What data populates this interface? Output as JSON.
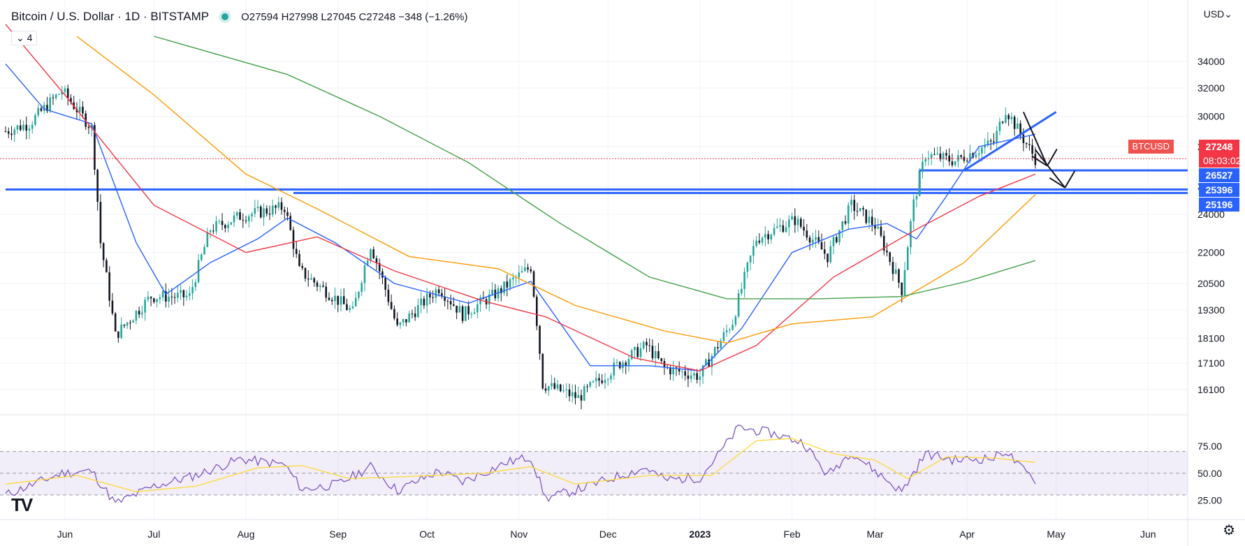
{
  "header": {
    "title": "Bitcoin / U.S. Dollar · 1D · BITSTAMP",
    "ohlc": "O27594 H27998 L27045 C27248 −348 (−1.26%)",
    "indicator_count": "4",
    "currency": "USD"
  },
  "price_tags": {
    "symbol": "BTCUSD",
    "last": "27248",
    "countdown": "08:03:02",
    "levels": [
      "26527",
      "25396",
      "25196"
    ]
  },
  "chart_data": [
    {
      "type": "candlestick",
      "xlabel": "",
      "ylabel": "",
      "x_ticks": [
        "Jun",
        "Jul",
        "Aug",
        "Sep",
        "Oct",
        "Nov",
        "Dec",
        "2023",
        "Feb",
        "Mar",
        "Apr",
        "May",
        "Jun"
      ],
      "y_ticks": [
        34000,
        32000,
        30000,
        28000,
        25600,
        24000,
        22000,
        20500,
        19300,
        18100,
        17100,
        16100
      ],
      "y_scale": "log",
      "ylim": [
        15300,
        36000
      ],
      "approx_close_path": [
        {
          "date": "2022-05-12",
          "v": 29000
        },
        {
          "date": "2022-05-20",
          "v": 29500
        },
        {
          "date": "2022-05-31",
          "v": 31800
        },
        {
          "date": "2022-06-10",
          "v": 29200
        },
        {
          "date": "2022-06-13",
          "v": 22500
        },
        {
          "date": "2022-06-18",
          "v": 18200
        },
        {
          "date": "2022-06-30",
          "v": 19900
        },
        {
          "date": "2022-07-13",
          "v": 19900
        },
        {
          "date": "2022-07-20",
          "v": 23200
        },
        {
          "date": "2022-07-30",
          "v": 23900
        },
        {
          "date": "2022-08-14",
          "v": 24400
        },
        {
          "date": "2022-08-19",
          "v": 21100
        },
        {
          "date": "2022-09-06",
          "v": 19200
        },
        {
          "date": "2022-09-12",
          "v": 22400
        },
        {
          "date": "2022-09-21",
          "v": 18500
        },
        {
          "date": "2022-10-05",
          "v": 20300
        },
        {
          "date": "2022-10-13",
          "v": 19100
        },
        {
          "date": "2022-10-25",
          "v": 20100
        },
        {
          "date": "2022-11-05",
          "v": 21300
        },
        {
          "date": "2022-11-09",
          "v": 16300
        },
        {
          "date": "2022-11-21",
          "v": 15800
        },
        {
          "date": "2022-12-05",
          "v": 17100
        },
        {
          "date": "2022-12-14",
          "v": 17800
        },
        {
          "date": "2022-12-20",
          "v": 16900
        },
        {
          "date": "2023-01-01",
          "v": 16600
        },
        {
          "date": "2023-01-12",
          "v": 18800
        },
        {
          "date": "2023-01-20",
          "v": 22700
        },
        {
          "date": "2023-02-02",
          "v": 23700
        },
        {
          "date": "2023-02-13",
          "v": 21800
        },
        {
          "date": "2023-02-21",
          "v": 24500
        },
        {
          "date": "2023-03-01",
          "v": 23400
        },
        {
          "date": "2023-03-10",
          "v": 20200
        },
        {
          "date": "2023-03-14",
          "v": 24600
        },
        {
          "date": "2023-03-18",
          "v": 27500
        },
        {
          "date": "2023-03-28",
          "v": 27100
        },
        {
          "date": "2023-04-10",
          "v": 28300
        },
        {
          "date": "2023-04-14",
          "v": 30500
        },
        {
          "date": "2023-04-19",
          "v": 28800
        },
        {
          "date": "2023-04-24",
          "v": 27248
        }
      ],
      "series": [
        {
          "color": "#2962ff",
          "points": [
            {
              "date": "2022-05-12",
              "v": 33800
            },
            {
              "date": "2022-05-25",
              "v": 30500
            },
            {
              "date": "2022-06-10",
              "v": 29500
            },
            {
              "date": "2022-06-25",
              "v": 22500
            },
            {
              "date": "2022-07-05",
              "v": 20000
            },
            {
              "date": "2022-07-20",
              "v": 21500
            },
            {
              "date": "2022-08-05",
              "v": 22700
            },
            {
              "date": "2022-08-15",
              "v": 23800
            },
            {
              "date": "2022-08-31",
              "v": 22500
            },
            {
              "date": "2022-09-20",
              "v": 20500
            },
            {
              "date": "2022-10-15",
              "v": 19600
            },
            {
              "date": "2022-11-05",
              "v": 20600
            },
            {
              "date": "2022-11-25",
              "v": 17000
            },
            {
              "date": "2022-12-15",
              "v": 17000
            },
            {
              "date": "2023-01-01",
              "v": 16800
            },
            {
              "date": "2023-01-15",
              "v": 18500
            },
            {
              "date": "2023-02-01",
              "v": 22000
            },
            {
              "date": "2023-02-20",
              "v": 23200
            },
            {
              "date": "2023-03-05",
              "v": 23500
            },
            {
              "date": "2023-03-15",
              "v": 22700
            },
            {
              "date": "2023-03-25",
              "v": 25000
            },
            {
              "date": "2023-04-05",
              "v": 28000
            },
            {
              "date": "2023-04-24",
              "v": 28800
            }
          ]
        },
        {
          "color": "#f23645",
          "points": [
            {
              "date": "2022-05-12",
              "v": 37000
            },
            {
              "date": "2022-06-01",
              "v": 31500
            },
            {
              "date": "2022-07-01",
              "v": 24500
            },
            {
              "date": "2022-08-01",
              "v": 22000
            },
            {
              "date": "2022-08-25",
              "v": 22800
            },
            {
              "date": "2022-09-20",
              "v": 21100
            },
            {
              "date": "2022-10-20",
              "v": 19700
            },
            {
              "date": "2022-11-10",
              "v": 19000
            },
            {
              "date": "2022-12-10",
              "v": 17300
            },
            {
              "date": "2023-01-01",
              "v": 16800
            },
            {
              "date": "2023-01-20",
              "v": 17800
            },
            {
              "date": "2023-02-15",
              "v": 20800
            },
            {
              "date": "2023-03-15",
              "v": 23200
            },
            {
              "date": "2023-04-05",
              "v": 25000
            },
            {
              "date": "2023-04-24",
              "v": 26300
            }
          ]
        },
        {
          "color": "#ff9800",
          "points": [
            {
              "date": "2022-06-05",
              "v": 36000
            },
            {
              "date": "2022-07-01",
              "v": 31500
            },
            {
              "date": "2022-08-01",
              "v": 26300
            },
            {
              "date": "2022-08-25",
              "v": 24300
            },
            {
              "date": "2022-09-25",
              "v": 21800
            },
            {
              "date": "2022-10-25",
              "v": 21200
            },
            {
              "date": "2022-11-20",
              "v": 19500
            },
            {
              "date": "2022-12-20",
              "v": 18400
            },
            {
              "date": "2023-01-10",
              "v": 17900
            },
            {
              "date": "2023-02-01",
              "v": 18700
            },
            {
              "date": "2023-02-28",
              "v": 19000
            },
            {
              "date": "2023-03-31",
              "v": 21500
            },
            {
              "date": "2023-04-24",
              "v": 25100
            }
          ]
        },
        {
          "color": "#43a047",
          "points": [
            {
              "date": "2022-07-01",
              "v": 36000
            },
            {
              "date": "2022-08-15",
              "v": 33000
            },
            {
              "date": "2022-09-15",
              "v": 30000
            },
            {
              "date": "2022-10-15",
              "v": 27000
            },
            {
              "date": "2022-11-15",
              "v": 23500
            },
            {
              "date": "2022-12-15",
              "v": 20800
            },
            {
              "date": "2023-01-10",
              "v": 19800
            },
            {
              "date": "2023-02-10",
              "v": 19800
            },
            {
              "date": "2023-03-10",
              "v": 19900
            },
            {
              "date": "2023-04-01",
              "v": 20600
            },
            {
              "date": "2023-04-24",
              "v": 21600
            }
          ]
        }
      ],
      "hlines": [
        {
          "v": 25396,
          "from": "2022-05-12",
          "to": "end",
          "color": "#2962ff"
        },
        {
          "v": 25196,
          "from": "2022-08-17",
          "to": "end",
          "color": "#2962ff"
        },
        {
          "v": 26527,
          "from": "2023-03-16",
          "to": "end",
          "color": "#2962ff"
        }
      ],
      "trendline": {
        "from": {
          "date": "2023-03-31",
          "v": 26527
        },
        "to": {
          "date": "2023-05-01",
          "v": 30300
        },
        "color": "#2962ff"
      },
      "arrows": [
        {
          "from": {
            "date": "2023-04-20",
            "v": 30300
          },
          "to": {
            "date": "2023-04-28",
            "v": 26800
          }
        },
        {
          "from": {
            "date": "2023-04-24",
            "v": 27800
          },
          "to": {
            "date": "2023-05-04",
            "v": 25500
          }
        }
      ],
      "current_price_line": {
        "v": 27248,
        "color": "#f23645"
      }
    },
    {
      "type": "line",
      "y_ticks": [
        75,
        50,
        25
      ],
      "ylim": [
        10,
        100
      ],
      "band": [
        30,
        70
      ],
      "series": [
        {
          "color": "#7e57c2",
          "points": [
            {
              "date": "2022-05-12",
              "v": 30
            },
            {
              "date": "2022-05-31",
              "v": 50
            },
            {
              "date": "2022-06-10",
              "v": 52
            },
            {
              "date": "2022-06-18",
              "v": 22
            },
            {
              "date": "2022-07-01",
              "v": 38
            },
            {
              "date": "2022-07-15",
              "v": 48
            },
            {
              "date": "2022-07-30",
              "v": 63
            },
            {
              "date": "2022-08-14",
              "v": 58
            },
            {
              "date": "2022-08-20",
              "v": 35
            },
            {
              "date": "2022-09-01",
              "v": 40
            },
            {
              "date": "2022-09-12",
              "v": 56
            },
            {
              "date": "2022-09-21",
              "v": 34
            },
            {
              "date": "2022-10-05",
              "v": 52
            },
            {
              "date": "2022-10-13",
              "v": 42
            },
            {
              "date": "2022-10-28",
              "v": 60
            },
            {
              "date": "2022-11-05",
              "v": 65
            },
            {
              "date": "2022-11-10",
              "v": 27
            },
            {
              "date": "2022-11-21",
              "v": 35
            },
            {
              "date": "2022-12-05",
              "v": 48
            },
            {
              "date": "2022-12-14",
              "v": 55
            },
            {
              "date": "2022-12-20",
              "v": 44
            },
            {
              "date": "2023-01-01",
              "v": 46
            },
            {
              "date": "2023-01-08",
              "v": 70
            },
            {
              "date": "2023-01-14",
              "v": 92
            },
            {
              "date": "2023-01-25",
              "v": 87
            },
            {
              "date": "2023-02-05",
              "v": 78
            },
            {
              "date": "2023-02-13",
              "v": 48
            },
            {
              "date": "2023-02-21",
              "v": 70
            },
            {
              "date": "2023-03-01",
              "v": 52
            },
            {
              "date": "2023-03-10",
              "v": 33
            },
            {
              "date": "2023-03-18",
              "v": 68
            },
            {
              "date": "2023-03-28",
              "v": 62
            },
            {
              "date": "2023-04-10",
              "v": 64
            },
            {
              "date": "2023-04-14",
              "v": 71
            },
            {
              "date": "2023-04-19",
              "v": 55
            },
            {
              "date": "2023-04-24",
              "v": 44
            }
          ]
        },
        {
          "color": "#fdd835",
          "points": [
            {
              "date": "2022-05-12",
              "v": 40
            },
            {
              "date": "2022-06-05",
              "v": 48
            },
            {
              "date": "2022-06-25",
              "v": 33
            },
            {
              "date": "2022-07-15",
              "v": 38
            },
            {
              "date": "2022-08-05",
              "v": 55
            },
            {
              "date": "2022-08-20",
              "v": 57
            },
            {
              "date": "2022-09-05",
              "v": 45
            },
            {
              "date": "2022-09-25",
              "v": 47
            },
            {
              "date": "2022-10-20",
              "v": 50
            },
            {
              "date": "2022-11-05",
              "v": 56
            },
            {
              "date": "2022-11-20",
              "v": 40
            },
            {
              "date": "2022-12-15",
              "v": 48
            },
            {
              "date": "2023-01-05",
              "v": 48
            },
            {
              "date": "2023-01-20",
              "v": 80
            },
            {
              "date": "2023-02-01",
              "v": 82
            },
            {
              "date": "2023-02-15",
              "v": 68
            },
            {
              "date": "2023-03-01",
              "v": 62
            },
            {
              "date": "2023-03-12",
              "v": 45
            },
            {
              "date": "2023-03-25",
              "v": 65
            },
            {
              "date": "2023-04-10",
              "v": 64
            },
            {
              "date": "2023-04-24",
              "v": 60
            }
          ]
        }
      ]
    }
  ]
}
